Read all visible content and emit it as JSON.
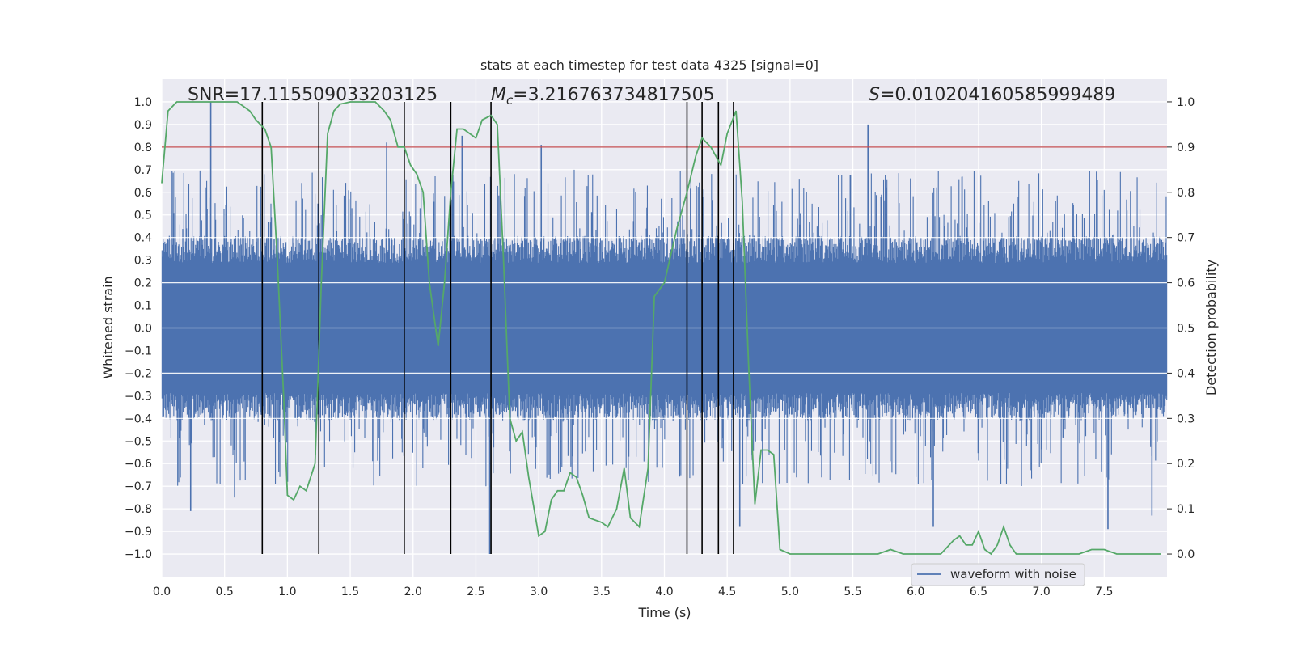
{
  "chart_data": {
    "type": "line",
    "title": "stats at each timestep for test data 4325 [signal=0]",
    "xlabel": "Time (s)",
    "ylabel": "Whitened strain",
    "y2label": "Detection probability",
    "xlim": [
      0.0,
      8.0
    ],
    "ylim": [
      -1.1,
      1.1
    ],
    "y2lim": [
      -0.05,
      1.05
    ],
    "xticks": [
      "0.0",
      "0.5",
      "1.0",
      "1.5",
      "2.0",
      "2.5",
      "3.0",
      "3.5",
      "4.0",
      "4.5",
      "5.0",
      "5.5",
      "6.0",
      "6.5",
      "7.0",
      "7.5"
    ],
    "yticks": [
      "1.0",
      "0.9",
      "0.8",
      "0.7",
      "0.6",
      "0.5",
      "0.4",
      "0.3",
      "0.2",
      "0.1",
      "0.0",
      "−0.1",
      "−0.2",
      "−0.3",
      "−0.4",
      "−0.5",
      "−0.6",
      "−0.7",
      "−0.8",
      "−0.9",
      "−1.0"
    ],
    "y2ticks": [
      "1.0",
      "0.9",
      "0.8",
      "0.7",
      "0.6",
      "0.5",
      "0.4",
      "0.3",
      "0.2",
      "0.1",
      "0.0"
    ],
    "grid": true,
    "legend_position": "lower-right",
    "legend": [
      "waveform with noise"
    ],
    "annotations": {
      "snr": "SNR=17.115509033203125",
      "mc_symbol": "M",
      "mc_sub": "c",
      "mc_value": "=3.216763734817505",
      "s_symbol": "S",
      "s_value": "=0.010204160585999489"
    },
    "threshold": {
      "axis": "right",
      "value": 0.9,
      "color": "#c44e52"
    },
    "event_times": [
      0.8,
      1.25,
      1.93,
      2.3,
      2.62,
      4.18,
      4.3,
      4.43,
      4.55
    ],
    "series": [
      {
        "name": "waveform with noise",
        "axis": "left",
        "color": "#4c72b0",
        "kind": "strain",
        "sample_rate_hz": 2048,
        "duration_s": 8.0,
        "typical_envelope": 0.4,
        "spikes": [
          {
            "t": 0.39,
            "v": 1.0
          },
          {
            "t": 0.23,
            "v": -0.81
          },
          {
            "t": 0.58,
            "v": -0.75
          },
          {
            "t": 1.79,
            "v": 0.82
          },
          {
            "t": 2.39,
            "v": 0.85
          },
          {
            "t": 2.61,
            "v": -1.0
          },
          {
            "t": 3.02,
            "v": 0.81
          },
          {
            "t": 5.62,
            "v": 0.9
          },
          {
            "t": 6.14,
            "v": -0.88
          },
          {
            "t": 7.53,
            "v": -0.89
          },
          {
            "t": 7.88,
            "v": -0.83
          },
          {
            "t": 4.6,
            "v": -0.88
          }
        ]
      },
      {
        "name": "detection probability",
        "axis": "right",
        "color": "#55a868",
        "x": [
          0.0,
          0.05,
          0.12,
          0.2,
          0.3,
          0.4,
          0.5,
          0.6,
          0.65,
          0.7,
          0.75,
          0.82,
          0.87,
          0.92,
          0.97,
          1.0,
          1.05,
          1.1,
          1.15,
          1.22,
          1.27,
          1.32,
          1.37,
          1.42,
          1.5,
          1.6,
          1.7,
          1.77,
          1.82,
          1.88,
          1.93,
          1.98,
          2.03,
          2.08,
          2.13,
          2.2,
          2.25,
          2.3,
          2.35,
          2.4,
          2.45,
          2.5,
          2.55,
          2.62,
          2.67,
          2.72,
          2.77,
          2.82,
          2.87,
          2.92,
          3.0,
          3.05,
          3.1,
          3.15,
          3.2,
          3.25,
          3.3,
          3.35,
          3.4,
          3.5,
          3.55,
          3.62,
          3.68,
          3.73,
          3.8,
          3.87,
          3.92,
          4.0,
          4.05,
          4.1,
          4.18,
          4.25,
          4.3,
          4.37,
          4.45,
          4.5,
          4.57,
          4.62,
          4.67,
          4.72,
          4.77,
          4.82,
          4.87,
          4.92,
          5.0,
          5.1,
          5.2,
          5.3,
          5.4,
          5.5,
          5.6,
          5.7,
          5.8,
          5.9,
          6.0,
          6.1,
          6.2,
          6.3,
          6.35,
          6.4,
          6.45,
          6.5,
          6.55,
          6.6,
          6.65,
          6.7,
          6.75,
          6.8,
          6.85,
          6.9,
          7.0,
          7.1,
          7.2,
          7.3,
          7.4,
          7.5,
          7.6,
          7.7,
          7.8,
          7.95
        ],
        "values": [
          0.82,
          0.98,
          1.0,
          1.0,
          1.0,
          1.0,
          1.0,
          1.0,
          0.99,
          0.98,
          0.96,
          0.94,
          0.9,
          0.65,
          0.35,
          0.13,
          0.12,
          0.15,
          0.14,
          0.2,
          0.6,
          0.93,
          0.98,
          0.995,
          1.0,
          1.0,
          1.0,
          0.98,
          0.96,
          0.9,
          0.9,
          0.86,
          0.84,
          0.8,
          0.6,
          0.46,
          0.6,
          0.8,
          0.94,
          0.94,
          0.93,
          0.92,
          0.96,
          0.97,
          0.95,
          0.65,
          0.3,
          0.25,
          0.27,
          0.17,
          0.04,
          0.05,
          0.12,
          0.14,
          0.14,
          0.18,
          0.17,
          0.13,
          0.08,
          0.07,
          0.06,
          0.1,
          0.19,
          0.08,
          0.06,
          0.19,
          0.57,
          0.6,
          0.66,
          0.72,
          0.8,
          0.88,
          0.92,
          0.9,
          0.86,
          0.93,
          0.98,
          0.78,
          0.42,
          0.11,
          0.23,
          0.23,
          0.22,
          0.01,
          0.0,
          0.0,
          0.0,
          0.0,
          0.0,
          0.0,
          0.0,
          0.0,
          0.01,
          0.0,
          0.0,
          0.0,
          0.0,
          0.03,
          0.04,
          0.02,
          0.02,
          0.05,
          0.01,
          0.0,
          0.02,
          0.06,
          0.02,
          0.0,
          0.0,
          0.0,
          0.0,
          0.0,
          0.0,
          0.0,
          0.01,
          0.01,
          0.0,
          0.0,
          0.0,
          0.0
        ]
      }
    ]
  }
}
